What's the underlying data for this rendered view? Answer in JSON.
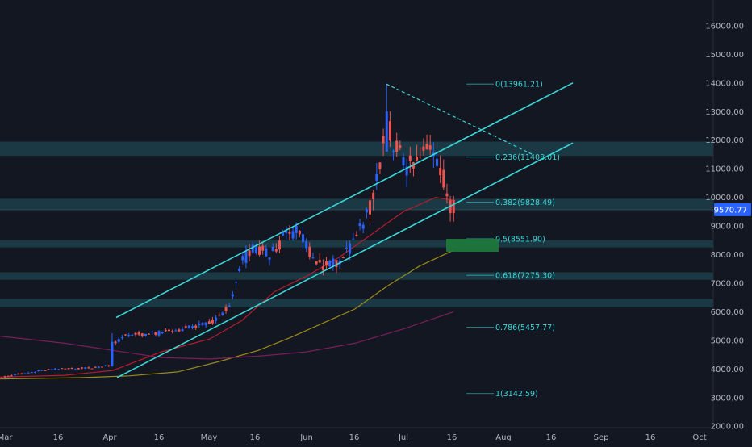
{
  "chart_data": {
    "type": "candlestick",
    "last_price": "9570.77",
    "y_axis": {
      "ylim": [
        1950,
        16900
      ],
      "ticks": [
        "16000.00",
        "15000.00",
        "14000.00",
        "13000.00",
        "12000.00",
        "11000.00",
        "10000.00",
        "9000.00",
        "8000.00",
        "7000.00",
        "6000.00",
        "5000.00",
        "4000.00",
        "3000.00",
        "2000.00"
      ]
    },
    "x_axis": {
      "ticks": [
        "Mar",
        "16",
        "Apr",
        "16",
        "May",
        "16",
        "Jun",
        "16",
        "Jul",
        "16",
        "Aug",
        "16",
        "Sep",
        "16",
        "Oct"
      ]
    },
    "fib_levels": [
      {
        "label": "0(13961.21)",
        "value": 13961.21
      },
      {
        "label": "0.236(11408.01)",
        "value": 11408.01
      },
      {
        "label": "0.382(9828.49)",
        "value": 9828.49
      },
      {
        "label": "0.5(8551.90)",
        "value": 8551.9
      },
      {
        "label": "0.618(7275.30)",
        "value": 7275.3
      },
      {
        "label": "0.786(5457.77)",
        "value": 5457.77
      },
      {
        "label": "1(3142.59)",
        "value": 3142.59
      }
    ],
    "zones": [
      {
        "from": 11450,
        "to": 11950
      },
      {
        "from": 9550,
        "to": 9950
      },
      {
        "from": 8250,
        "to": 8500
      },
      {
        "from": 7120,
        "to": 7380
      },
      {
        "from": 6150,
        "to": 6450
      }
    ],
    "target_box": {
      "from": 8100,
      "to": 8550
    },
    "colors": {
      "background": "#131722",
      "up": "#2962ff",
      "down": "#ef5350",
      "channel": "#3ad6d6",
      "zone": "#1e4650",
      "target": "#1e7c3c",
      "ma_fast": "#b71c2c",
      "ma_mid": "#9c8a1a",
      "ma_slow": "#7b1e5a",
      "price_tag": "#2962ff",
      "axis_text": "#b2b5be"
    }
  }
}
